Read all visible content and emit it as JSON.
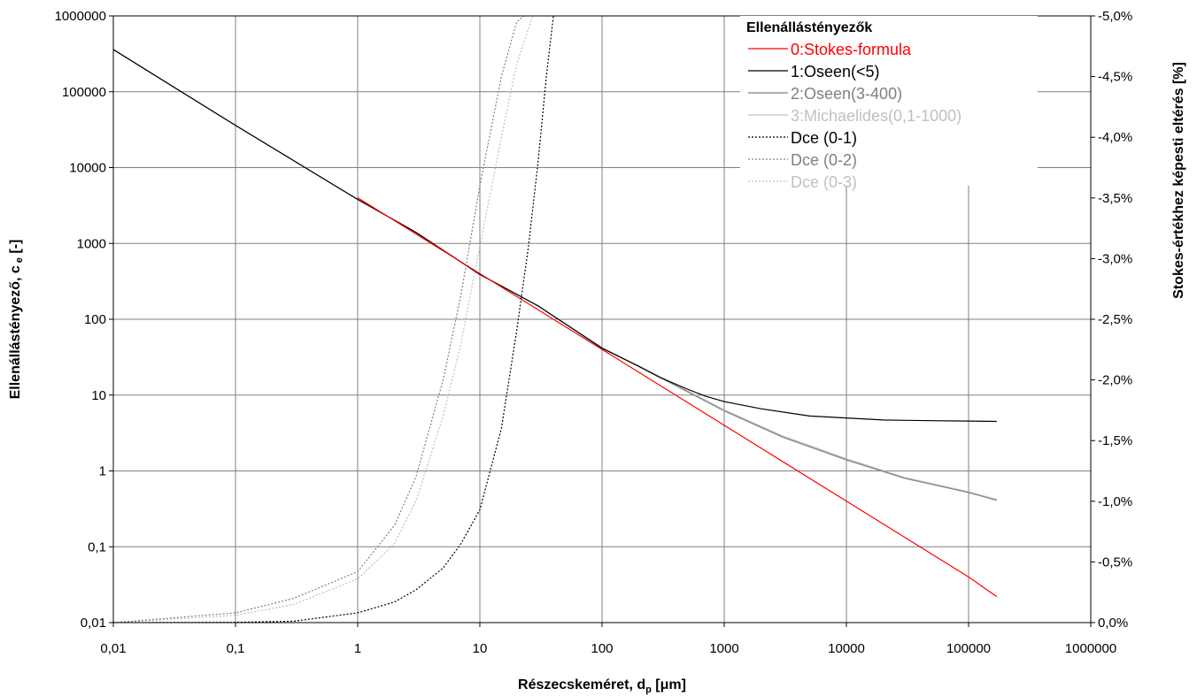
{
  "chart_data": {
    "type": "line",
    "xlabel": "Részecskeméret, d",
    "xlabel_sub": "p",
    "xlabel_unit": " [μm]",
    "ylabel": "Ellenállástényező, c",
    "ylabel_sub": "e",
    "ylabel_unit": " [-]",
    "y2label": "Stokes-értékhez képesti eltérés [%]",
    "x_scale": "log",
    "y_scale": "log",
    "xlim": [
      0.01,
      1000000
    ],
    "ylim": [
      0.01,
      1000000
    ],
    "y2lim": [
      0.0,
      -5.0
    ],
    "grid": true,
    "x_ticks": [
      0.01,
      0.1,
      1,
      10,
      100,
      1000,
      10000,
      100000,
      1000000
    ],
    "x_tick_labels": [
      "0,01",
      "0,1",
      "1",
      "10",
      "100",
      "1000",
      "10000",
      "100000",
      "1000000"
    ],
    "y_ticks": [
      0.01,
      0.1,
      1,
      10,
      100,
      1000,
      10000,
      100000,
      1000000
    ],
    "y_tick_labels": [
      "0,01",
      "0,1",
      "1",
      "10",
      "100",
      "1000",
      "10000",
      "100000",
      "1000000"
    ],
    "y2_ticks": [
      0.0,
      -0.5,
      -1.0,
      -1.5,
      -2.0,
      -2.5,
      -3.0,
      -3.5,
      -4.0,
      -4.5,
      -5.0
    ],
    "y2_tick_labels": [
      "0,0%",
      "-0,5%",
      "-1,0%",
      "-1,5%",
      "-2,0%",
      "-2,5%",
      "-3,0%",
      "-3,5%",
      "-4,0%",
      "-4,5%",
      "-5,0%"
    ],
    "legend": {
      "title": "Ellenállástényezők",
      "position": "top-right"
    },
    "series": [
      {
        "name": "0:Stokes-formula",
        "axis": "left",
        "color": "#ff0000",
        "dash": "solid",
        "x": [
          1,
          10,
          100,
          1000,
          10000,
          100000,
          170000
        ],
        "y": [
          4000,
          400,
          40,
          4,
          0.4,
          0.04,
          0.022
        ]
      },
      {
        "name": "1:Oseen(<5)",
        "axis": "left",
        "color": "#000000",
        "dash": "solid",
        "x": [
          0.01,
          0.1,
          1,
          3,
          10,
          30,
          100,
          200,
          300,
          500,
          700,
          1000,
          2000,
          5000,
          10000,
          20000,
          50000,
          100000,
          170000
        ],
        "y": [
          360000,
          36000,
          3800,
          1400,
          390,
          150,
          41.5,
          24,
          17,
          12,
          9.7,
          8.2,
          6.6,
          5.3,
          5.0,
          4.7,
          4.6,
          4.55,
          4.5
        ]
      },
      {
        "name": "2:Oseen(3-400)",
        "axis": "left",
        "color": "#808080",
        "dash": "solid",
        "x": [
          0.01,
          0.1,
          1,
          3,
          10,
          30,
          100,
          300,
          1000,
          3000,
          10000,
          30000,
          100000,
          170000
        ],
        "y": [
          360000,
          36000,
          3800,
          1400,
          390,
          150,
          42,
          17,
          6.2,
          2.8,
          1.4,
          0.8,
          0.52,
          0.41
        ]
      },
      {
        "name": "3:Michaelides(0,1-1000)",
        "axis": "left",
        "color": "#c0c0c0",
        "dash": "solid",
        "x": [
          0.01,
          0.1,
          1,
          3,
          10,
          30,
          100,
          300,
          1000,
          3000,
          10000,
          30000,
          100000,
          170000
        ],
        "y": [
          360000,
          36000,
          3800,
          1400,
          390,
          150,
          42,
          17.5,
          6.4,
          2.9,
          1.45,
          0.82,
          0.53,
          0.42
        ]
      },
      {
        "name": "Dce (0-1)",
        "axis": "right",
        "color": "#000000",
        "dash": "2,2",
        "x": [
          0.01,
          0.1,
          0.3,
          1,
          2,
          3,
          5,
          7,
          10,
          15,
          20,
          25,
          30,
          35,
          40
        ],
        "y": [
          0.0,
          -0.002,
          -0.012,
          -0.08,
          -0.17,
          -0.27,
          -0.45,
          -0.65,
          -0.93,
          -1.6,
          -2.4,
          -3.1,
          -3.8,
          -4.5,
          -5.0
        ]
      },
      {
        "name": "Dce (0-2)",
        "axis": "right",
        "color": "#808080",
        "dash": "2,2",
        "x": [
          0.01,
          0.1,
          0.3,
          1,
          2,
          3,
          5,
          7,
          10,
          15,
          20,
          23
        ],
        "y": [
          0.0,
          -0.08,
          -0.2,
          -0.42,
          -0.8,
          -1.2,
          -2.0,
          -2.7,
          -3.6,
          -4.5,
          -4.95,
          -5.0
        ]
      },
      {
        "name": "Dce (0-3)",
        "axis": "right",
        "color": "#c0c0c0",
        "dash": "2,2",
        "x": [
          0.01,
          0.1,
          0.3,
          1,
          2,
          3,
          5,
          7,
          10,
          15,
          20,
          27
        ],
        "y": [
          0.0,
          -0.06,
          -0.15,
          -0.36,
          -0.65,
          -1.0,
          -1.7,
          -2.3,
          -3.1,
          -4.0,
          -4.6,
          -5.0
        ]
      }
    ]
  }
}
